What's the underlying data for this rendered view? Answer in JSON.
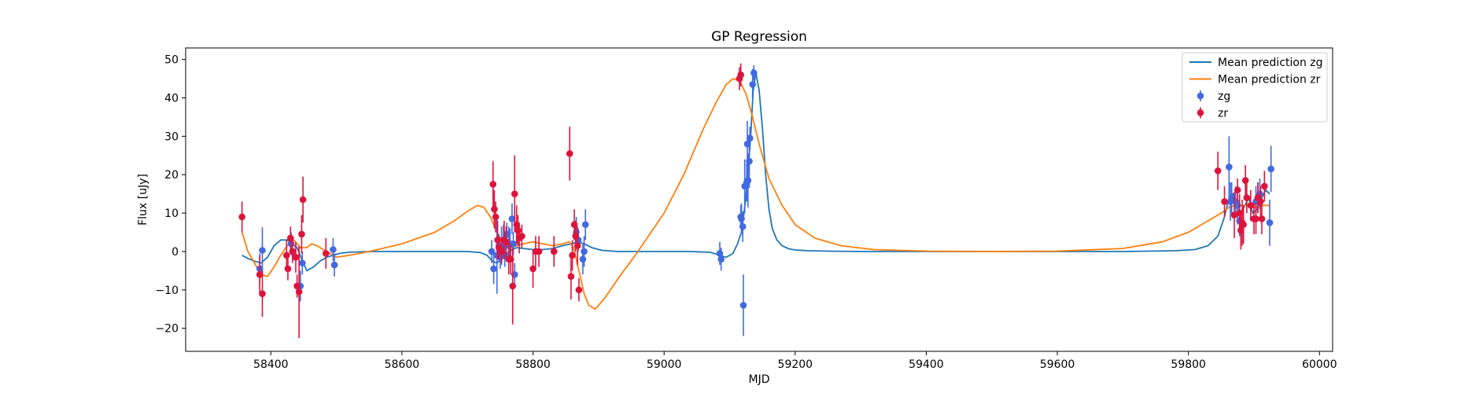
{
  "chart_data": {
    "type": "scatter",
    "title": "GP Regression",
    "xlabel": "MJD",
    "ylabel": "Flux [uJy]",
    "xlim": [
      58270,
      60020
    ],
    "ylim": [
      -26,
      53
    ],
    "xticks": [
      58400,
      58600,
      58800,
      59000,
      59200,
      59400,
      59600,
      59800,
      60000
    ],
    "yticks": [
      -20,
      -10,
      0,
      10,
      20,
      30,
      40,
      50
    ],
    "grid": false,
    "legend_position": "top-right",
    "legend": [
      {
        "label": "Mean prediction zg",
        "kind": "line",
        "color": "#1f77b4"
      },
      {
        "label": "Mean prediction zr",
        "kind": "line",
        "color": "#ff7f0e"
      },
      {
        "label": "zg",
        "kind": "errorbar",
        "color": "#4169e1"
      },
      {
        "label": "zr",
        "kind": "errorbar",
        "color": "#dc143c"
      }
    ],
    "lines": [
      {
        "name": "Mean prediction zg",
        "color": "#1f77b4",
        "x": [
          58356,
          58365,
          58375,
          58385,
          58395,
          58405,
          58415,
          58425,
          58432,
          58440,
          58447,
          58455,
          58465,
          58475,
          58485,
          58495,
          58505,
          58520,
          58550,
          58600,
          58650,
          58700,
          58720,
          58730,
          58738,
          58745,
          58752,
          58760,
          58768,
          58775,
          58785,
          58800,
          58815,
          58830,
          58845,
          58858,
          58868,
          58878,
          58890,
          58905,
          58930,
          58960,
          59000,
          59040,
          59070,
          59085,
          59095,
          59105,
          59112,
          59118,
          59122,
          59127,
          59132,
          59136,
          59140,
          59145,
          59150,
          59155,
          59160,
          59165,
          59172,
          59180,
          59190,
          59200,
          59220,
          59250,
          59300,
          59400,
          59500,
          59600,
          59700,
          59780,
          59810,
          59830,
          59845,
          59855,
          59862,
          59868,
          59875,
          59880,
          59886,
          59892,
          59898,
          59905,
          59912,
          59918,
          59924
        ],
        "y": [
          -1,
          -1.8,
          -2.5,
          -3,
          -1.5,
          1.5,
          3,
          3,
          2,
          1,
          -2,
          -5,
          -4,
          -2.5,
          -1.5,
          -1,
          -0.5,
          -0.2,
          0,
          0,
          0,
          0,
          -0.3,
          -1,
          -2.5,
          -3,
          -2,
          -0.5,
          0.5,
          1,
          0.8,
          0.5,
          0.5,
          0.8,
          1.5,
          2,
          2.5,
          2,
          1,
          0.3,
          0,
          0,
          0,
          0,
          -0.2,
          -1,
          -1.5,
          -0.5,
          2,
          5,
          10,
          18,
          30,
          42,
          46.5,
          42,
          32,
          20,
          11,
          6,
          3,
          1.5,
          0.7,
          0.4,
          0.2,
          0.1,
          0,
          0,
          0,
          0,
          0,
          0.2,
          0.5,
          1.5,
          4,
          9,
          14,
          15,
          11,
          10,
          12,
          14,
          10,
          11,
          14,
          16,
          15
        ]
      },
      {
        "name": "Mean prediction zr",
        "color": "#ff7f0e",
        "x": [
          58356,
          58365,
          58375,
          58385,
          58395,
          58405,
          58415,
          58425,
          58435,
          58445,
          58455,
          58462,
          58470,
          58480,
          58490,
          58500,
          58520,
          58550,
          58600,
          58650,
          58680,
          58700,
          58715,
          58725,
          58735,
          58745,
          58755,
          58765,
          58775,
          58785,
          58800,
          58815,
          58830,
          58845,
          58855,
          58862,
          58870,
          58878,
          58885,
          58895,
          58910,
          58930,
          58960,
          59000,
          59030,
          59060,
          59080,
          59095,
          59105,
          59115,
          59125,
          59135,
          59145,
          59160,
          59180,
          59200,
          59230,
          59270,
          59320,
          59400,
          59500,
          59600,
          59700,
          59760,
          59800,
          59830,
          59850,
          59862,
          59872,
          59882,
          59892,
          59902,
          59912,
          59924
        ],
        "y": [
          5,
          0,
          -3,
          -6,
          -6.5,
          -4,
          -1,
          1.5,
          3,
          1,
          1,
          2,
          1.5,
          0.5,
          -0.5,
          -1.5,
          -1,
          0,
          2,
          5,
          8,
          10.5,
          12,
          11.5,
          9,
          5,
          2,
          1,
          1.5,
          2,
          2.5,
          2,
          1.5,
          2,
          2.5,
          1,
          -5,
          -11,
          -14,
          -15,
          -12,
          -7,
          0,
          10,
          20,
          32,
          39,
          43.5,
          45,
          44.5,
          41,
          35,
          28,
          19,
          12,
          7,
          3.5,
          1.5,
          0.5,
          0.1,
          0,
          0.1,
          0.8,
          2.5,
          5,
          8,
          10,
          11.5,
          12,
          12,
          12,
          11.5,
          12,
          12
        ]
      }
    ],
    "series": [
      {
        "name": "zg",
        "color": "#4169e1",
        "x": [
          58383,
          58387,
          58431,
          58445,
          58448,
          58495,
          58497,
          58737,
          58740,
          58745,
          58748,
          58750,
          58752,
          58755,
          58757,
          58760,
          58763,
          58765,
          58768,
          58770,
          58772,
          58866,
          58869,
          58876,
          58878,
          58880,
          59085,
          59087,
          59117,
          59118,
          59120,
          59121,
          59123,
          59126,
          59127,
          59128,
          59130,
          59131,
          59135,
          59137,
          59862,
          59864,
          59866,
          59872,
          59875,
          59878,
          59903,
          59906,
          59909,
          59924,
          59926
        ],
        "y": [
          -4.5,
          0.3,
          2,
          -9,
          -3,
          0.5,
          -3.5,
          0,
          -4.5,
          -1,
          1.5,
          -1.5,
          1.5,
          3,
          -1,
          4.5,
          1.5,
          2,
          8.5,
          2,
          -6,
          5,
          3,
          -2,
          0,
          7,
          -0.5,
          -2,
          9,
          8.5,
          6.5,
          -14,
          17,
          18,
          28,
          18.5,
          23.5,
          29.5,
          43.5,
          46.5,
          22,
          13,
          14,
          13,
          12,
          8,
          13,
          14,
          15,
          7.5,
          21.5
        ],
        "err": [
          4,
          6,
          3,
          4,
          3,
          3,
          3,
          3,
          4,
          10,
          3,
          3,
          5,
          4,
          3,
          3,
          5,
          4,
          4,
          3,
          3,
          4,
          3,
          4,
          4,
          4,
          3,
          3,
          3,
          4,
          4,
          8,
          7,
          5,
          6,
          7,
          7,
          3,
          4,
          2,
          8,
          5,
          4,
          4,
          5,
          4,
          4,
          4,
          4,
          6,
          6
        ]
      },
      {
        "name": "zr",
        "color": "#dc143c",
        "x": [
          58356,
          58383,
          58387,
          58424,
          58426,
          58430,
          58433,
          58438,
          58440,
          58443,
          58447,
          58449,
          58484,
          58739,
          58741,
          58743,
          58746,
          58748,
          58752,
          58756,
          58759,
          58763,
          58766,
          58769,
          58772,
          58775,
          58777,
          58779,
          58783,
          58800,
          58804,
          58809,
          58832,
          58856,
          58858,
          58860,
          58863,
          58865,
          58868,
          58870,
          59115,
          59117,
          59845,
          59855,
          59870,
          59875,
          59878,
          59880,
          59882,
          59884,
          59887,
          59889,
          59895,
          59900,
          59903,
          59906,
          59910,
          59912,
          59916
        ],
        "y": [
          9,
          -6,
          -11,
          -1,
          -4.5,
          3.5,
          0,
          -1.5,
          -9,
          -10.5,
          4.5,
          13.5,
          -0.5,
          17.5,
          11,
          9,
          3,
          1,
          0,
          3,
          2.5,
          -2,
          -2,
          -9,
          15,
          7,
          5.5,
          3.5,
          4,
          -4.5,
          0,
          0,
          0,
          25.5,
          -6.5,
          -1,
          7,
          4,
          1.5,
          -10,
          45,
          46,
          21,
          13,
          9.5,
          16,
          10,
          5.5,
          7.5,
          7,
          18.5,
          14,
          12,
          8.5,
          8.5,
          14,
          13,
          8.5,
          17
        ],
        "err": [
          4,
          5,
          6,
          4,
          3,
          3,
          3,
          4,
          3,
          12,
          5,
          6,
          4,
          6,
          5,
          4,
          5,
          3,
          3,
          5,
          4,
          4,
          4,
          10,
          10,
          5,
          4,
          4,
          3,
          5,
          4,
          4,
          4,
          7,
          6,
          4,
          4,
          4,
          5,
          3,
          3,
          3,
          5,
          4,
          6,
          3,
          5,
          5,
          6,
          5,
          4,
          4,
          4,
          4,
          4,
          4,
          4,
          4,
          4
        ]
      }
    ]
  }
}
